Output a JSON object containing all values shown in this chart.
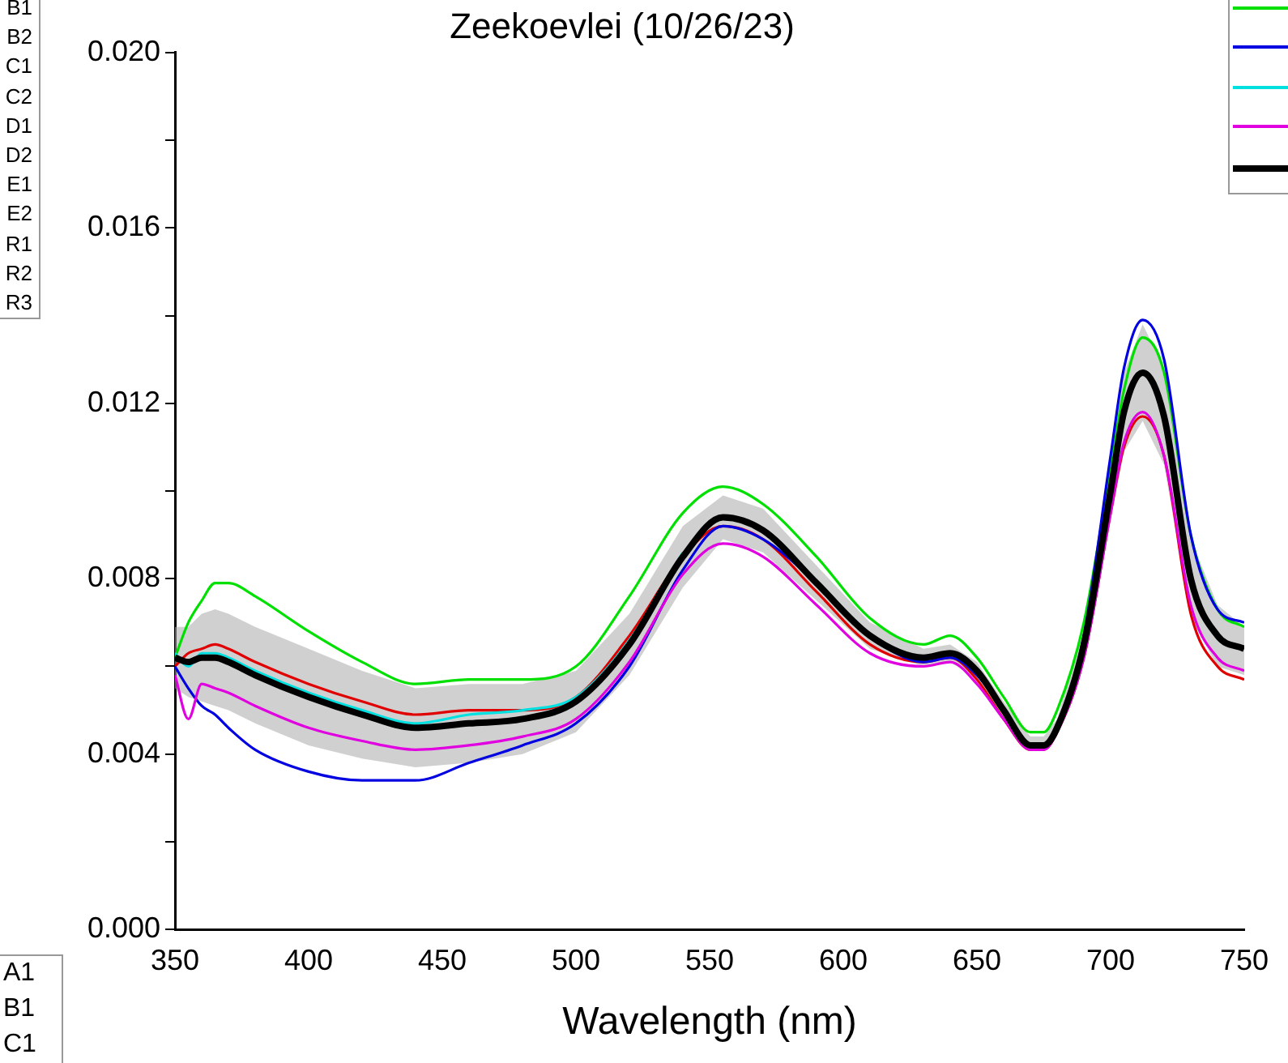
{
  "chart_data": {
    "type": "line",
    "title": "Zeekoevlei (10/26/23)",
    "xlabel": "Wavelength (nm)",
    "x": [
      350,
      355,
      360,
      365,
      370,
      380,
      400,
      420,
      440,
      460,
      480,
      500,
      520,
      540,
      555,
      570,
      590,
      610,
      630,
      640,
      650,
      660,
      670,
      675,
      680,
      690,
      700,
      705,
      712,
      720,
      730,
      740,
      750
    ],
    "series": [
      {
        "color": "#e00000",
        "values": [
          0.006,
          0.0063,
          0.0064,
          0.0065,
          0.0064,
          0.0061,
          0.0056,
          0.0052,
          0.0049,
          0.005,
          0.005,
          0.0053,
          0.0067,
          0.0085,
          0.0092,
          0.0089,
          0.0077,
          0.0065,
          0.0061,
          0.0062,
          0.0057,
          0.0048,
          0.0041,
          0.0041,
          0.0045,
          0.0062,
          0.0095,
          0.011,
          0.0117,
          0.0108,
          0.0072,
          0.006,
          0.0057
        ]
      },
      {
        "color": "#00e000",
        "values": [
          0.0062,
          0.007,
          0.0075,
          0.0079,
          0.0079,
          0.0076,
          0.0068,
          0.0061,
          0.0056,
          0.0057,
          0.0057,
          0.006,
          0.0076,
          0.0095,
          0.0101,
          0.0097,
          0.0085,
          0.0071,
          0.0065,
          0.0067,
          0.0062,
          0.0053,
          0.0045,
          0.0045,
          0.005,
          0.007,
          0.0105,
          0.0123,
          0.0135,
          0.0127,
          0.009,
          0.0073,
          0.0069
        ]
      },
      {
        "color": "#0000e0",
        "values": [
          0.006,
          0.0055,
          0.0051,
          0.0049,
          0.0046,
          0.0041,
          0.0036,
          0.0034,
          0.0034,
          0.0038,
          0.0042,
          0.0047,
          0.006,
          0.0082,
          0.0092,
          0.0089,
          0.0079,
          0.0067,
          0.0061,
          0.0062,
          0.0058,
          0.005,
          0.0042,
          0.0042,
          0.0046,
          0.0067,
          0.0108,
          0.0128,
          0.0139,
          0.013,
          0.009,
          0.0073,
          0.007
        ]
      },
      {
        "color": "#00e0e0",
        "values": [
          0.0063,
          0.006,
          0.0063,
          0.0063,
          0.0062,
          0.0059,
          0.0054,
          0.005,
          0.0047,
          0.0049,
          0.005,
          0.0053,
          0.0066,
          0.0086,
          null,
          null,
          null,
          null,
          null,
          null,
          null,
          null,
          null,
          null,
          null,
          null,
          null,
          null,
          null,
          null,
          null,
          null,
          null
        ]
      },
      {
        "color": "#e000e0",
        "values": [
          0.0058,
          0.0048,
          0.0056,
          0.0055,
          0.0054,
          0.0051,
          0.0046,
          0.0043,
          0.0041,
          0.0042,
          0.0044,
          0.0048,
          0.0061,
          0.0081,
          0.0088,
          0.0085,
          0.0074,
          0.0063,
          0.006,
          0.0061,
          0.0056,
          0.0048,
          0.0041,
          0.0041,
          0.0045,
          0.0062,
          0.0095,
          0.0111,
          0.0118,
          0.0108,
          0.0074,
          0.0062,
          0.0059
        ]
      },
      {
        "color": "#000000",
        "values": [
          0.0062,
          0.0061,
          0.0062,
          0.0062,
          0.0061,
          0.0058,
          0.0053,
          0.0049,
          0.0046,
          0.0047,
          0.0048,
          0.0052,
          0.0065,
          0.0085,
          0.0094,
          0.0091,
          0.0079,
          0.0067,
          0.0062,
          0.0063,
          0.0059,
          0.005,
          0.0042,
          0.0042,
          0.0046,
          0.0065,
          0.01,
          0.0118,
          0.0127,
          0.0117,
          0.008,
          0.0067,
          0.0064
        ],
        "lower": [
          0.0055,
          0.0053,
          0.0052,
          0.0051,
          0.005,
          0.0047,
          0.0042,
          0.0039,
          0.0037,
          0.0038,
          0.004,
          0.0045,
          0.0058,
          0.0078,
          0.0089,
          0.0086,
          0.0075,
          0.0064,
          0.006,
          0.0061,
          0.0057,
          0.0048,
          0.0041,
          0.0041,
          0.0044,
          0.0061,
          0.0093,
          0.0109,
          0.0116,
          0.0106,
          0.0071,
          0.006,
          0.0058
        ],
        "upper": [
          0.0069,
          0.0069,
          0.0072,
          0.0073,
          0.0072,
          0.0069,
          0.0064,
          0.0059,
          0.0055,
          0.0056,
          0.0056,
          0.0059,
          0.0072,
          0.0092,
          0.0099,
          0.0096,
          0.0083,
          0.007,
          0.0064,
          0.0065,
          0.0061,
          0.0052,
          0.0044,
          0.0044,
          0.0048,
          0.0069,
          0.0107,
          0.0127,
          0.0138,
          0.0128,
          0.0089,
          0.0074,
          0.0069
        ]
      }
    ],
    "xlim": [
      350,
      750
    ],
    "xticks": [
      350,
      400,
      450,
      500,
      550,
      600,
      650,
      700,
      750
    ],
    "ylim": [
      0,
      0.02
    ],
    "yticks": [
      {
        "value": 0,
        "label": "0.000"
      },
      {
        "value": 0.002,
        "label": null
      },
      {
        "value": 0.004,
        "label": "0.004"
      },
      {
        "value": 0.006,
        "label": null
      },
      {
        "value": 0.008,
        "label": "0.008"
      },
      {
        "value": 0.01,
        "label": null
      },
      {
        "value": 0.012,
        "label": "0.012"
      },
      {
        "value": 0.014,
        "label": null
      },
      {
        "value": 0.016,
        "label": "0.016"
      },
      {
        "value": 0.018,
        "label": null
      },
      {
        "value": 0.02,
        "label": "0.020"
      }
    ],
    "grid": false,
    "marker": "none",
    "line_style": "solid",
    "annotations": [
      "B1",
      "B2",
      "C1",
      "C2",
      "D1",
      "D2",
      "E1",
      "E2",
      "R1",
      "R2",
      "R3",
      "A1",
      "B1",
      "C1"
    ]
  }
}
